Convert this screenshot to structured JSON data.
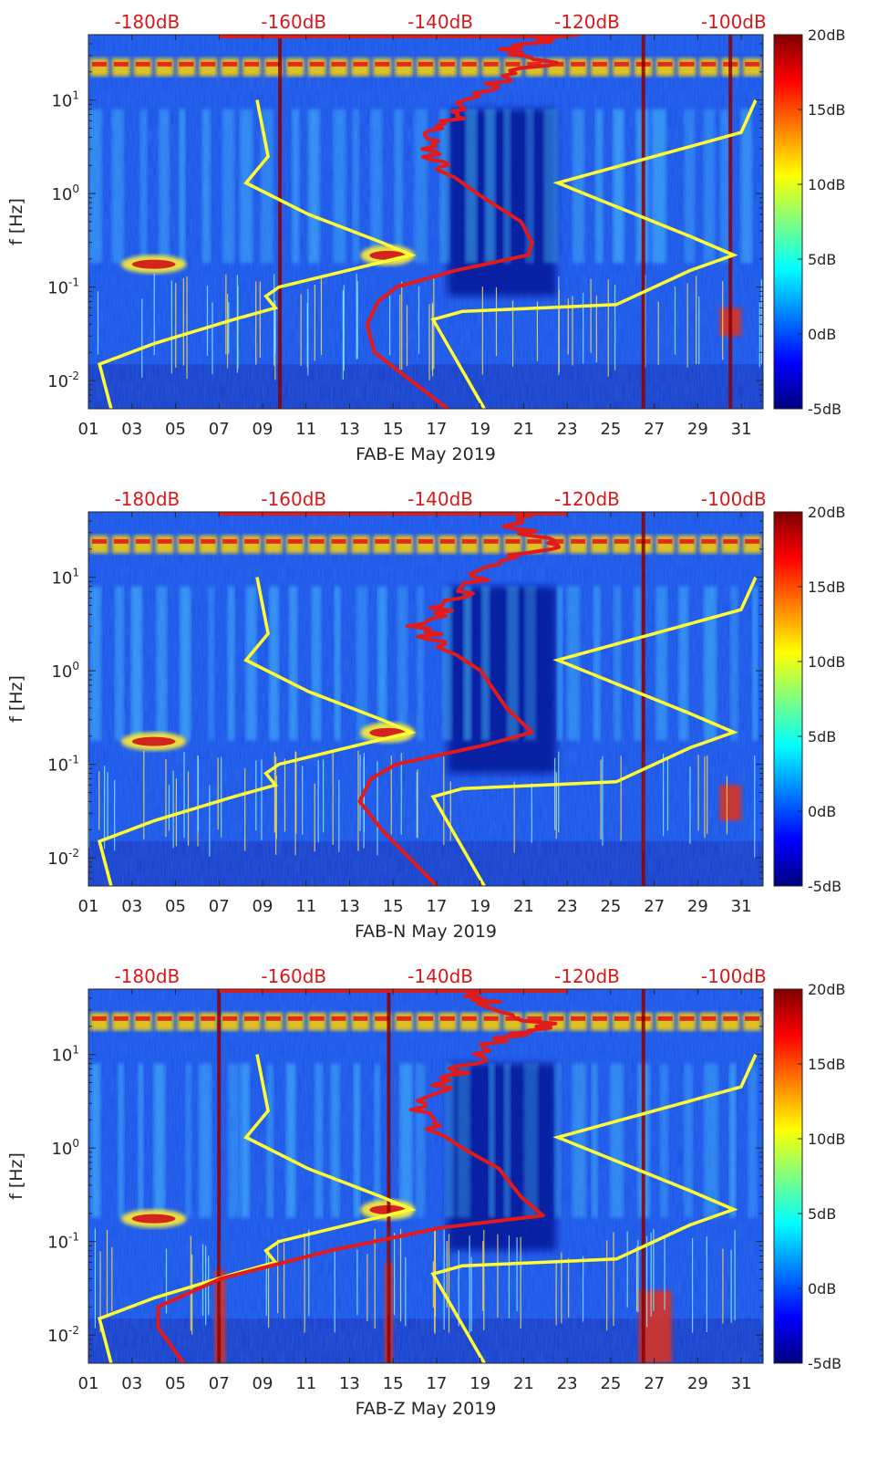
{
  "colors": {
    "background_dark": "#00007f",
    "field_blue": "#1c5cff",
    "yellow_curve": "#ffff33",
    "red_curve": "#e21a1a",
    "dark_red": "#8b0000",
    "db_label": "#d7191c"
  },
  "chart_data": [
    {
      "type": "heatmap",
      "station": "FAB-E",
      "xlabel": "FAB-E May 2019",
      "ylabel": "f [Hz]",
      "x_ticks": [
        "01",
        "03",
        "05",
        "07",
        "09",
        "11",
        "13",
        "15",
        "17",
        "19",
        "21",
        "23",
        "25",
        "27",
        "29",
        "31"
      ],
      "y_ticks": [
        "10^-2",
        "10^-1",
        "10^0",
        "10^1"
      ],
      "y_scale": "log",
      "ylim": [
        0.005,
        50
      ],
      "xlim": [
        1,
        32
      ],
      "top_axis_ticks": [
        "-180dB",
        "-160dB",
        "-140dB",
        "-120dB",
        "-100dB"
      ],
      "colorbar": {
        "min": -5,
        "max": 20,
        "ticks": [
          "20dB",
          "15dB",
          "10dB",
          "5dB",
          "0dB",
          "-5dB"
        ]
      },
      "hot_bands": [
        {
          "x": [
            1.0,
            31.8
          ],
          "f": [
            18,
            28
          ],
          "kind": "daily_bursts"
        },
        {
          "x": [
            2.5,
            5.5
          ],
          "f": [
            0.14,
            0.22
          ],
          "kind": "microseism"
        },
        {
          "x": [
            13.5,
            16.0
          ],
          "f": [
            0.17,
            0.28
          ],
          "kind": "microseism"
        },
        {
          "x": [
            30.0,
            31.0
          ],
          "f": [
            0.03,
            0.06
          ],
          "kind": "transient"
        }
      ],
      "vertical_spikes": [
        9.8,
        26.5,
        30.5
      ],
      "yellow_curve": [
        {
          "db": -184.9,
          "f": 0.005
        },
        {
          "db": -186.5,
          "f": 0.015
        },
        {
          "db": -179.0,
          "f": 0.025
        },
        {
          "db": -168.2,
          "f": 0.045
        },
        {
          "db": -162.5,
          "f": 0.06
        },
        {
          "db": -163.8,
          "f": 0.08
        },
        {
          "db": -162.0,
          "f": 0.1
        },
        {
          "db": -144.0,
          "f": 0.22
        },
        {
          "db": -148.0,
          "f": 0.3
        },
        {
          "db": -158.0,
          "f": 0.6
        },
        {
          "db": -166.5,
          "f": 1.3
        },
        {
          "db": -163.5,
          "f": 2.5
        },
        {
          "db": -165.0,
          "f": 10.0
        }
      ],
      "yellow_curve_high": [
        {
          "db": -134.0,
          "f": 0.005
        },
        {
          "db": -141.0,
          "f": 0.045
        },
        {
          "db": -137.0,
          "f": 0.055
        },
        {
          "db": -116.0,
          "f": 0.065
        },
        {
          "db": -106.0,
          "f": 0.15
        },
        {
          "db": -100.0,
          "f": 0.22
        },
        {
          "db": -106.0,
          "f": 0.35
        },
        {
          "db": -124.0,
          "f": 1.3
        },
        {
          "db": -99.0,
          "f": 4.5
        },
        {
          "db": -97.0,
          "f": 10.0
        }
      ],
      "red_curve": [
        {
          "db": -139.0,
          "f": 0.005
        },
        {
          "db": -149.0,
          "f": 0.02
        },
        {
          "db": -150.0,
          "f": 0.04
        },
        {
          "db": -148.5,
          "f": 0.07
        },
        {
          "db": -146.0,
          "f": 0.1
        },
        {
          "db": -138.0,
          "f": 0.15
        },
        {
          "db": -128.0,
          "f": 0.22
        },
        {
          "db": -127.5,
          "f": 0.3
        },
        {
          "db": -129.0,
          "f": 0.5
        },
        {
          "db": -135.0,
          "f": 1.0
        },
        {
          "db": -139.5,
          "f": 1.8
        },
        {
          "db": -142.5,
          "f": 3.0
        },
        {
          "db": -139.5,
          "f": 5.0
        },
        {
          "db": -137.5,
          "f": 8.0
        },
        {
          "db": -133.0,
          "f": 15.0
        },
        {
          "db": -126.0,
          "f": 25.0
        },
        {
          "db": -131.0,
          "f": 35.0
        },
        {
          "db": -121.0,
          "f": 50.0
        }
      ]
    },
    {
      "type": "heatmap",
      "station": "FAB-N",
      "xlabel": "FAB-N May 2019",
      "ylabel": "f [Hz]",
      "x_ticks": [
        "01",
        "03",
        "05",
        "07",
        "09",
        "11",
        "13",
        "15",
        "17",
        "19",
        "21",
        "23",
        "25",
        "27",
        "29",
        "31"
      ],
      "y_ticks": [
        "10^-2",
        "10^-1",
        "10^0",
        "10^1"
      ],
      "y_scale": "log",
      "ylim": [
        0.005,
        50
      ],
      "xlim": [
        1,
        32
      ],
      "top_axis_ticks": [
        "-180dB",
        "-160dB",
        "-140dB",
        "-120dB",
        "-100dB"
      ],
      "colorbar": {
        "min": -5,
        "max": 20,
        "ticks": [
          "20dB",
          "15dB",
          "10dB",
          "5dB",
          "0dB",
          "-5dB"
        ]
      },
      "hot_bands": [
        {
          "x": [
            1.0,
            31.8
          ],
          "f": [
            18,
            28
          ],
          "kind": "daily_bursts"
        },
        {
          "x": [
            2.5,
            5.5
          ],
          "f": [
            0.14,
            0.22
          ],
          "kind": "microseism"
        },
        {
          "x": [
            13.5,
            16.0
          ],
          "f": [
            0.17,
            0.28
          ],
          "kind": "microseism"
        },
        {
          "x": [
            30.0,
            31.0
          ],
          "f": [
            0.025,
            0.06
          ],
          "kind": "transient"
        }
      ],
      "vertical_spikes": [
        26.5
      ],
      "yellow_curve": [
        {
          "db": -184.9,
          "f": 0.005
        },
        {
          "db": -186.5,
          "f": 0.015
        },
        {
          "db": -179.0,
          "f": 0.025
        },
        {
          "db": -168.2,
          "f": 0.045
        },
        {
          "db": -162.5,
          "f": 0.06
        },
        {
          "db": -163.8,
          "f": 0.08
        },
        {
          "db": -162.0,
          "f": 0.1
        },
        {
          "db": -144.0,
          "f": 0.22
        },
        {
          "db": -148.0,
          "f": 0.3
        },
        {
          "db": -158.0,
          "f": 0.6
        },
        {
          "db": -166.5,
          "f": 1.3
        },
        {
          "db": -163.5,
          "f": 2.5
        },
        {
          "db": -165.0,
          "f": 10.0
        }
      ],
      "yellow_curve_high": [
        {
          "db": -134.0,
          "f": 0.005
        },
        {
          "db": -141.0,
          "f": 0.045
        },
        {
          "db": -137.0,
          "f": 0.055
        },
        {
          "db": -116.0,
          "f": 0.065
        },
        {
          "db": -106.0,
          "f": 0.15
        },
        {
          "db": -100.0,
          "f": 0.22
        },
        {
          "db": -106.0,
          "f": 0.35
        },
        {
          "db": -124.0,
          "f": 1.3
        },
        {
          "db": -99.0,
          "f": 4.5
        },
        {
          "db": -97.0,
          "f": 10.0
        }
      ],
      "red_curve": [
        {
          "db": -140.5,
          "f": 0.005
        },
        {
          "db": -148.0,
          "f": 0.02
        },
        {
          "db": -151.0,
          "f": 0.04
        },
        {
          "db": -149.5,
          "f": 0.07
        },
        {
          "db": -146.0,
          "f": 0.1
        },
        {
          "db": -134.0,
          "f": 0.16
        },
        {
          "db": -127.5,
          "f": 0.22
        },
        {
          "db": -131.0,
          "f": 0.4
        },
        {
          "db": -134.5,
          "f": 1.0
        },
        {
          "db": -139.5,
          "f": 1.8
        },
        {
          "db": -143.0,
          "f": 3.0
        },
        {
          "db": -139.5,
          "f": 5.0
        },
        {
          "db": -136.0,
          "f": 8.0
        },
        {
          "db": -133.0,
          "f": 15.0
        },
        {
          "db": -124.0,
          "f": 22.0
        },
        {
          "db": -130.0,
          "f": 35.0
        },
        {
          "db": -127.0,
          "f": 50.0
        }
      ]
    },
    {
      "type": "heatmap",
      "station": "FAB-Z",
      "xlabel": "FAB-Z May 2019",
      "ylabel": "f [Hz]",
      "x_ticks": [
        "01",
        "03",
        "05",
        "07",
        "09",
        "11",
        "13",
        "15",
        "17",
        "19",
        "21",
        "23",
        "25",
        "27",
        "29",
        "31"
      ],
      "y_ticks": [
        "10^-2",
        "10^-1",
        "10^0",
        "10^1"
      ],
      "y_scale": "log",
      "ylim": [
        0.005,
        50
      ],
      "xlim": [
        1,
        32
      ],
      "top_axis_ticks": [
        "-180dB",
        "-160dB",
        "-140dB",
        "-120dB",
        "-100dB"
      ],
      "colorbar": {
        "min": -5,
        "max": 20,
        "ticks": [
          "20dB",
          "15dB",
          "10dB",
          "5dB",
          "0dB",
          "-5dB"
        ]
      },
      "hot_bands": [
        {
          "x": [
            1.0,
            31.8
          ],
          "f": [
            18,
            28
          ],
          "kind": "daily_bursts"
        },
        {
          "x": [
            2.5,
            5.5
          ],
          "f": [
            0.14,
            0.22
          ],
          "kind": "microseism"
        },
        {
          "x": [
            13.5,
            16.0
          ],
          "f": [
            0.17,
            0.28
          ],
          "kind": "microseism"
        },
        {
          "x": [
            26.3,
            27.8
          ],
          "f": [
            0.005,
            0.03
          ],
          "kind": "transient"
        },
        {
          "x": [
            14.6,
            15.0
          ],
          "f": [
            0.005,
            0.06
          ],
          "kind": "transient"
        },
        {
          "x": [
            6.8,
            7.3
          ],
          "f": [
            0.005,
            0.05
          ],
          "kind": "transient"
        }
      ],
      "vertical_spikes": [
        7.0,
        14.8,
        26.5
      ],
      "yellow_curve": [
        {
          "db": -184.9,
          "f": 0.005
        },
        {
          "db": -186.5,
          "f": 0.015
        },
        {
          "db": -179.0,
          "f": 0.025
        },
        {
          "db": -168.2,
          "f": 0.045
        },
        {
          "db": -162.5,
          "f": 0.06
        },
        {
          "db": -163.8,
          "f": 0.08
        },
        {
          "db": -162.0,
          "f": 0.1
        },
        {
          "db": -144.0,
          "f": 0.22
        },
        {
          "db": -148.0,
          "f": 0.3
        },
        {
          "db": -158.0,
          "f": 0.6
        },
        {
          "db": -166.5,
          "f": 1.3
        },
        {
          "db": -163.5,
          "f": 2.5
        },
        {
          "db": -165.0,
          "f": 10.0
        }
      ],
      "yellow_curve_high": [
        {
          "db": -134.0,
          "f": 0.005
        },
        {
          "db": -141.0,
          "f": 0.045
        },
        {
          "db": -137.0,
          "f": 0.055
        },
        {
          "db": -116.0,
          "f": 0.065
        },
        {
          "db": -106.0,
          "f": 0.15
        },
        {
          "db": -100.0,
          "f": 0.22
        },
        {
          "db": -106.0,
          "f": 0.35
        },
        {
          "db": -124.0,
          "f": 1.3
        },
        {
          "db": -99.0,
          "f": 4.5
        },
        {
          "db": -97.0,
          "f": 10.0
        }
      ],
      "red_curve": [
        {
          "db": -175.0,
          "f": 0.005
        },
        {
          "db": -178.5,
          "f": 0.012
        },
        {
          "db": -178.5,
          "f": 0.02
        },
        {
          "db": -170.0,
          "f": 0.04
        },
        {
          "db": -155.0,
          "f": 0.08
        },
        {
          "db": -140.0,
          "f": 0.14
        },
        {
          "db": -126.0,
          "f": 0.19
        },
        {
          "db": -129.0,
          "f": 0.3
        },
        {
          "db": -132.0,
          "f": 0.6
        },
        {
          "db": -137.0,
          "f": 1.0
        },
        {
          "db": -141.0,
          "f": 1.6
        },
        {
          "db": -143.0,
          "f": 3.0
        },
        {
          "db": -139.5,
          "f": 5.0
        },
        {
          "db": -136.0,
          "f": 8.0
        },
        {
          "db": -132.0,
          "f": 15.0
        },
        {
          "db": -125.0,
          "f": 20.0
        },
        {
          "db": -133.0,
          "f": 35.0
        },
        {
          "db": -137.0,
          "f": 50.0
        }
      ]
    }
  ]
}
